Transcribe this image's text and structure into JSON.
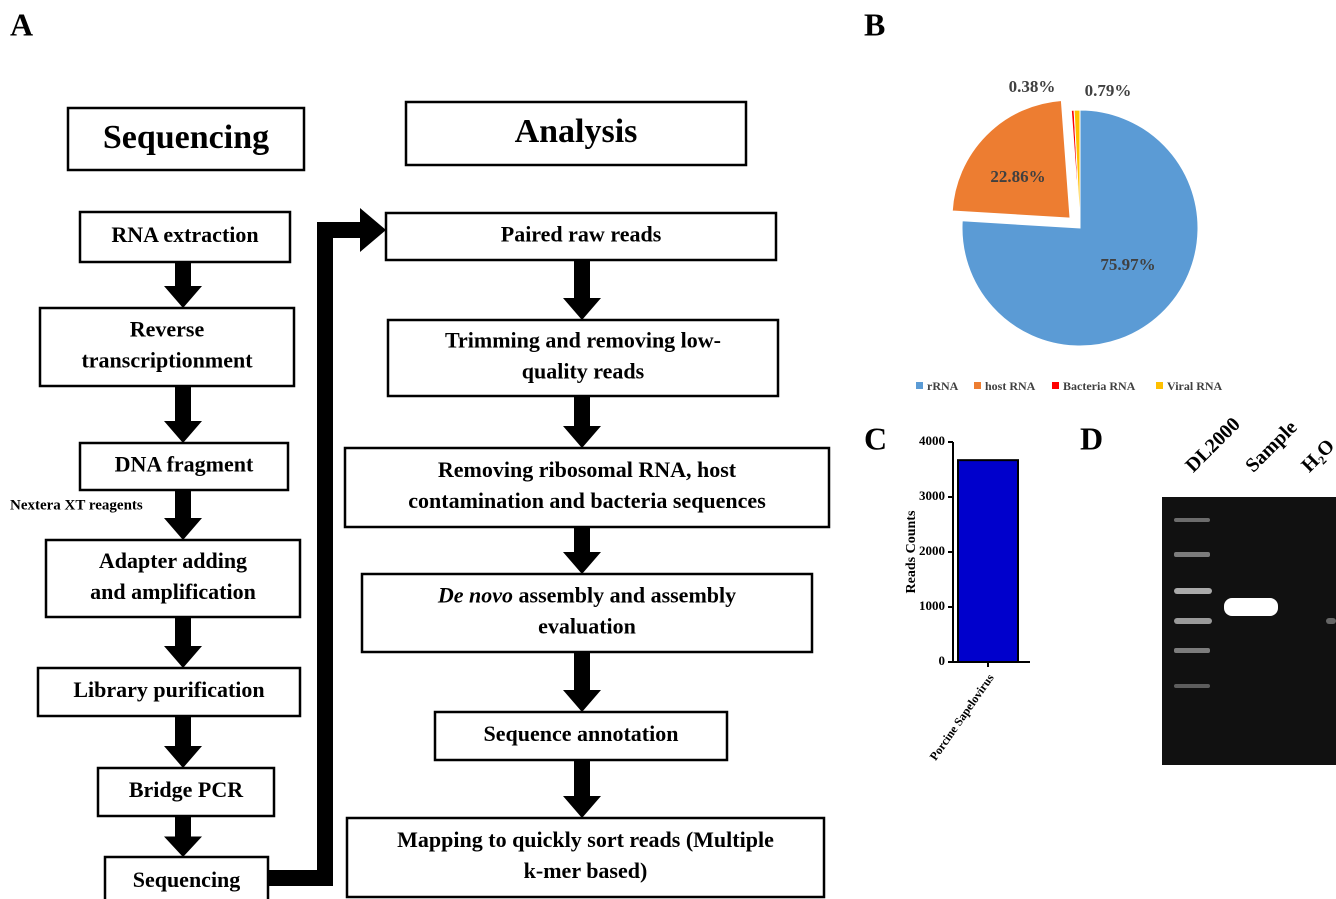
{
  "panel_labels": [
    "A",
    "B",
    "C",
    "D"
  ],
  "sequencing": {
    "header": "Sequencing",
    "steps": [
      [
        "RNA extraction"
      ],
      [
        "Reverse",
        "transcriptionment"
      ],
      [
        "DNA fragment"
      ],
      [
        "Adapter adding",
        "and amplification"
      ],
      [
        "Library purification"
      ],
      [
        "Bridge PCR"
      ],
      [
        "Sequencing"
      ]
    ],
    "note": "Nextera XT reagents"
  },
  "analysis": {
    "header": "Analysis",
    "steps": [
      [
        "Paired raw reads"
      ],
      [
        "Trimming and removing low-",
        "quality reads"
      ],
      [
        "Removing ribosomal RNA, host",
        "contamination and bacteria sequences"
      ],
      [
        "De novo",
        " assembly and assembly",
        "evaluation"
      ],
      [
        "Sequence annotation"
      ],
      [
        "Mapping to quickly sort reads (Multiple",
        "k-mer based)"
      ]
    ]
  },
  "chart_data": [
    {
      "type": "pie",
      "categories": [
        "rRNA",
        "host RNA",
        "Bacteria RNA",
        "Viral RNA"
      ],
      "values": [
        75.97,
        22.86,
        0.38,
        0.79
      ],
      "value_labels": [
        "75.97%",
        "22.86%",
        "0.38%",
        "0.79%"
      ],
      "colors": [
        "#5b9bd5",
        "#ed7d31",
        "#ff0000",
        "#ffc000"
      ],
      "legend": "bottom"
    },
    {
      "type": "bar",
      "categories": [
        "Porcine Sapelovirus"
      ],
      "values": [
        3670
      ],
      "color": "#0000cc",
      "ylabel": "Reads Counts",
      "ylim": [
        0,
        4000
      ],
      "yticks": [
        0,
        1000,
        2000,
        3000,
        4000
      ]
    }
  ],
  "gel": {
    "lanes": [
      "DL2000",
      "Sample",
      "H₂O"
    ]
  }
}
